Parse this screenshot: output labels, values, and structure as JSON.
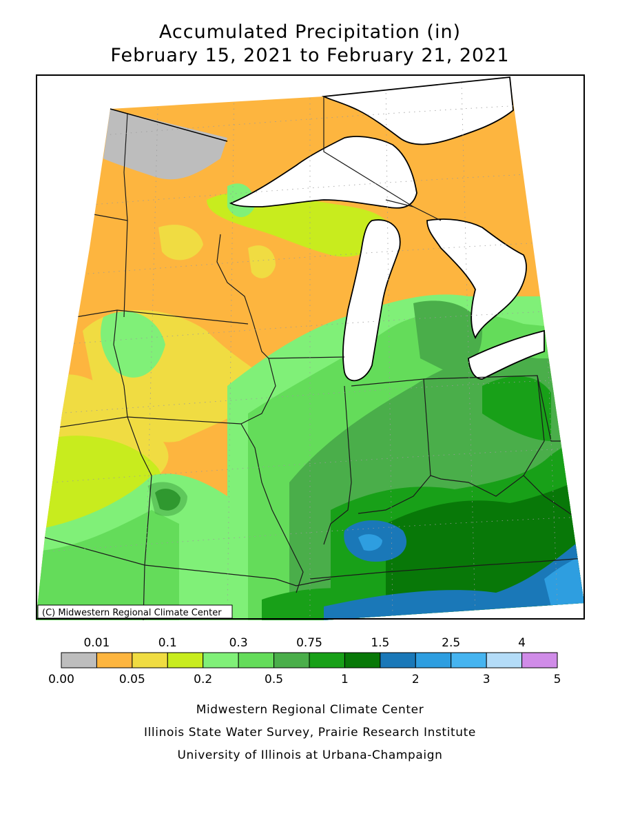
{
  "title": {
    "line1": "Accumulated Precipitation (in)",
    "line2": "February 15, 2021 to February 21, 2021"
  },
  "map": {
    "copyright": "(C) Midwestern Regional Climate Center"
  },
  "legend": {
    "unit": "in",
    "colors": [
      "#bdbdbd",
      "#fdb53f",
      "#f0dc42",
      "#c8ec1e",
      "#80f078",
      "#64dc5a",
      "#4aae4a",
      "#18a018",
      "#087808",
      "#1a78b8",
      "#2e9ee0",
      "#46b4f0",
      "#b4dcf8",
      "#d08ce8"
    ],
    "top_labels": [
      {
        "text": "0.01",
        "boundary": 1
      },
      {
        "text": "0.1",
        "boundary": 3
      },
      {
        "text": "0.3",
        "boundary": 5
      },
      {
        "text": "0.75",
        "boundary": 7
      },
      {
        "text": "1.5",
        "boundary": 9
      },
      {
        "text": "2.5",
        "boundary": 11
      },
      {
        "text": "4",
        "boundary": 13
      }
    ],
    "bottom_labels": [
      {
        "text": "0.00",
        "boundary": 0
      },
      {
        "text": "0.05",
        "boundary": 2
      },
      {
        "text": "0.2",
        "boundary": 4
      },
      {
        "text": "0.5",
        "boundary": 6
      },
      {
        "text": "1",
        "boundary": 8
      },
      {
        "text": "2",
        "boundary": 10
      },
      {
        "text": "3",
        "boundary": 12
      },
      {
        "text": "5",
        "boundary": 14
      }
    ]
  },
  "footer": {
    "line1": "Midwestern Regional Climate Center",
    "line2": "Illinois State Water Survey, Prairie Research Institute",
    "line3": "University of Illinois at Urbana-Champaign"
  }
}
